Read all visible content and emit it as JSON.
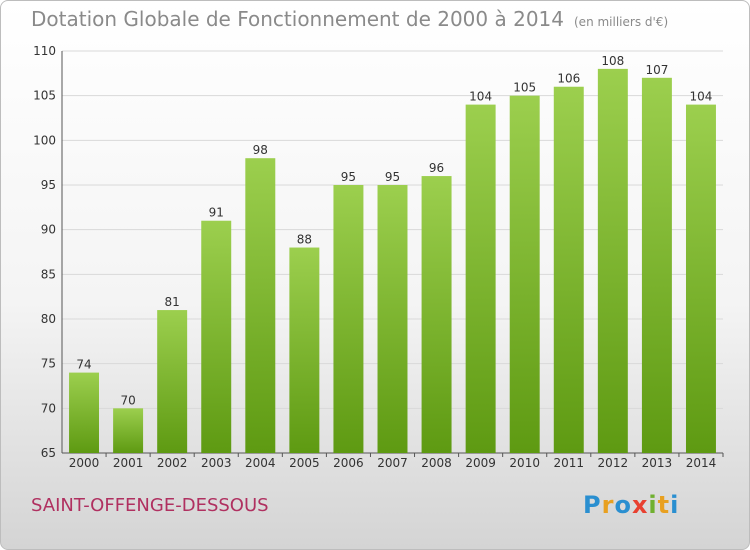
{
  "title": "Dotation Globale de Fonctionnement de 2000 à 2014",
  "unit": "(en milliers d'€)",
  "commune": "SAINT-OFFENGE-DESSOUS",
  "logo": {
    "p": "P",
    "r": "r",
    "o": "o",
    "x": "x",
    "i": "i",
    "t": "t",
    "i2": "i"
  },
  "colors": {
    "bar_top": "#9ccf4e",
    "bar_bottom": "#5e9a12",
    "title": "#8a8a8a",
    "commune": "#b03060",
    "grid": "#d9d9d9"
  },
  "chart_data": {
    "type": "bar",
    "title": "Dotation Globale de Fonctionnement de 2000 à 2014",
    "xlabel": "",
    "ylabel": "",
    "ylim": [
      65,
      110
    ],
    "yticks": [
      65,
      70,
      75,
      80,
      85,
      90,
      95,
      100,
      105,
      110
    ],
    "categories": [
      "2000",
      "2001",
      "2002",
      "2003",
      "2004",
      "2005",
      "2006",
      "2007",
      "2008",
      "2009",
      "2010",
      "2011",
      "2012",
      "2013",
      "2014"
    ],
    "values": [
      74,
      70,
      81,
      91,
      98,
      88,
      95,
      95,
      96,
      104,
      105,
      106,
      108,
      107,
      104
    ]
  }
}
